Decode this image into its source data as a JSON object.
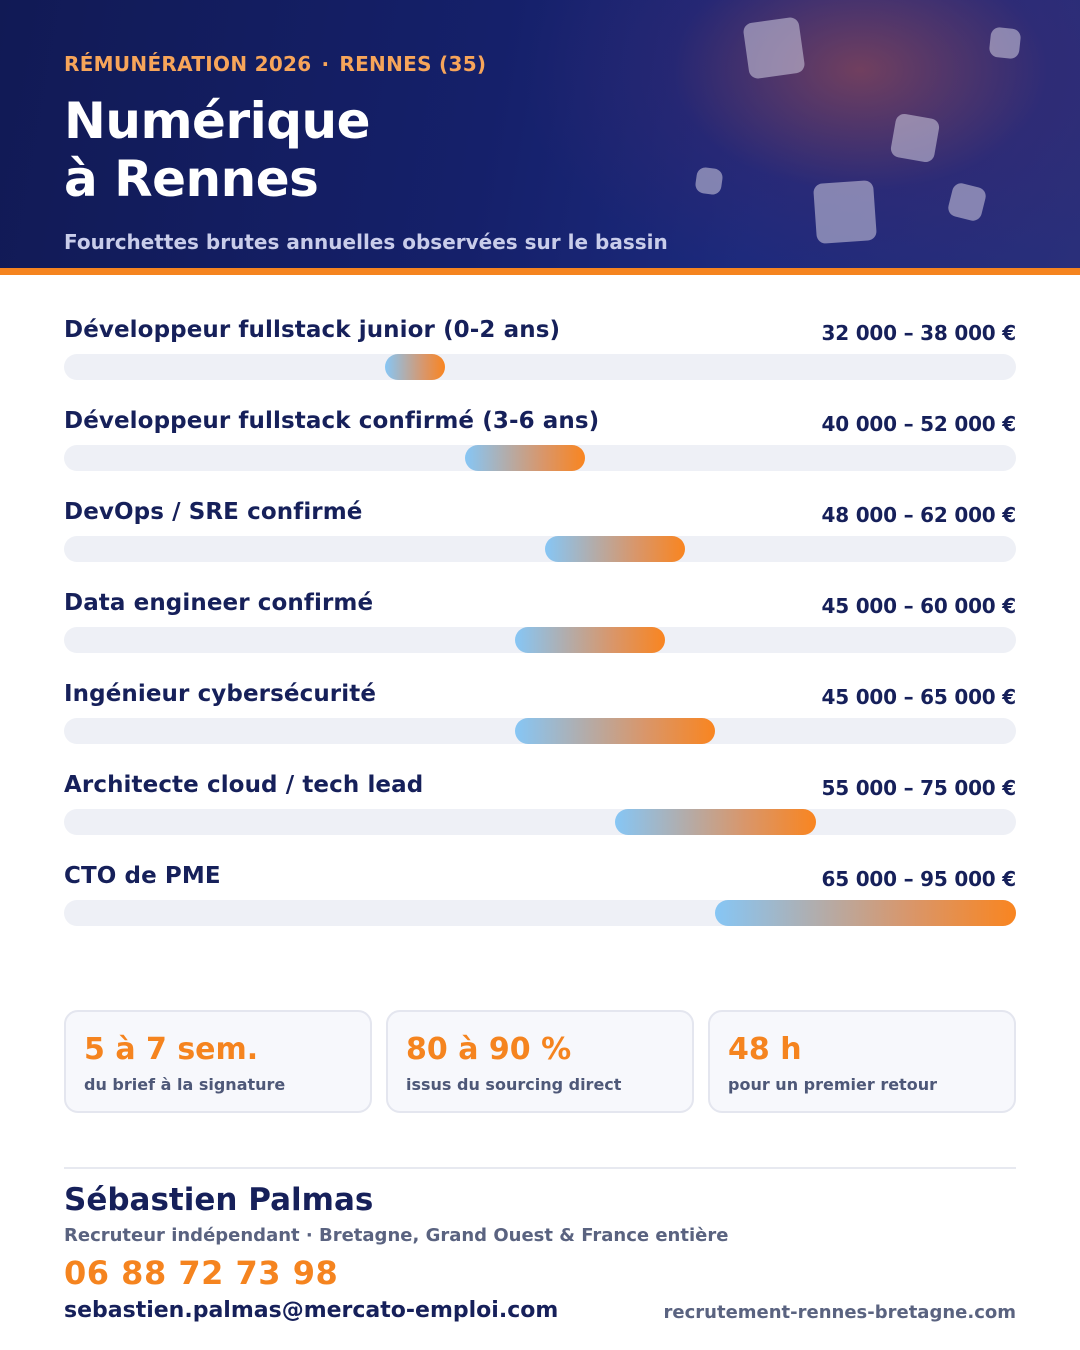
{
  "header": {
    "kicker_left": "RÉMUNÉRATION 2026",
    "kicker_sep": "·",
    "kicker_right": "RENNES (35)",
    "title_line1": "Numérique",
    "title_line2": "à Rennes",
    "subtitle": "Fourchettes brutes annuelles observées sur le bassin"
  },
  "colors": {
    "navy": "#16205a",
    "accent_orange": "#f5841f",
    "bar_gradient_start": "#86c6f5",
    "bar_gradient_end": "#f98520",
    "track": "#eef0f6"
  },
  "chart_data": {
    "type": "bar",
    "orientation": "horizontal-range",
    "unit": "€",
    "xlim": [
      0,
      95000
    ],
    "grid": false,
    "categories": [
      "Développeur fullstack junior (0-2 ans)",
      "Développeur fullstack confirmé (3-6 ans)",
      "DevOps / SRE confirmé",
      "Data engineer confirmé",
      "Ingénieur cybersécurité",
      "Architecte cloud / tech lead",
      "CTO de PME"
    ],
    "ranges": [
      {
        "min": 32000,
        "max": 38000,
        "label": "32 000 – 38 000 €"
      },
      {
        "min": 40000,
        "max": 52000,
        "label": "40 000 – 52 000 €"
      },
      {
        "min": 48000,
        "max": 62000,
        "label": "48 000 – 62 000 €"
      },
      {
        "min": 45000,
        "max": 60000,
        "label": "45 000 – 60 000 €"
      },
      {
        "min": 45000,
        "max": 65000,
        "label": "45 000 – 65 000 €"
      },
      {
        "min": 55000,
        "max": 75000,
        "label": "55 000 – 75 000 €"
      },
      {
        "min": 65000,
        "max": 95000,
        "label": "65 000 – 95 000 €"
      }
    ]
  },
  "stats": [
    {
      "value": "5 à 7 sem.",
      "caption": "du brief à la signature"
    },
    {
      "value": "80 à 90 %",
      "caption": "issus du sourcing direct"
    },
    {
      "value": "48 h",
      "caption": "pour un premier retour"
    }
  ],
  "footer": {
    "name": "Sébastien Palmas",
    "role": "Recruteur indépendant · Bretagne, Grand Ouest & France entière",
    "phone": "06 88 72 73 98",
    "email": "sebastien.palmas@mercato-emploi.com",
    "website": "recrutement-rennes-bretagne.com"
  }
}
